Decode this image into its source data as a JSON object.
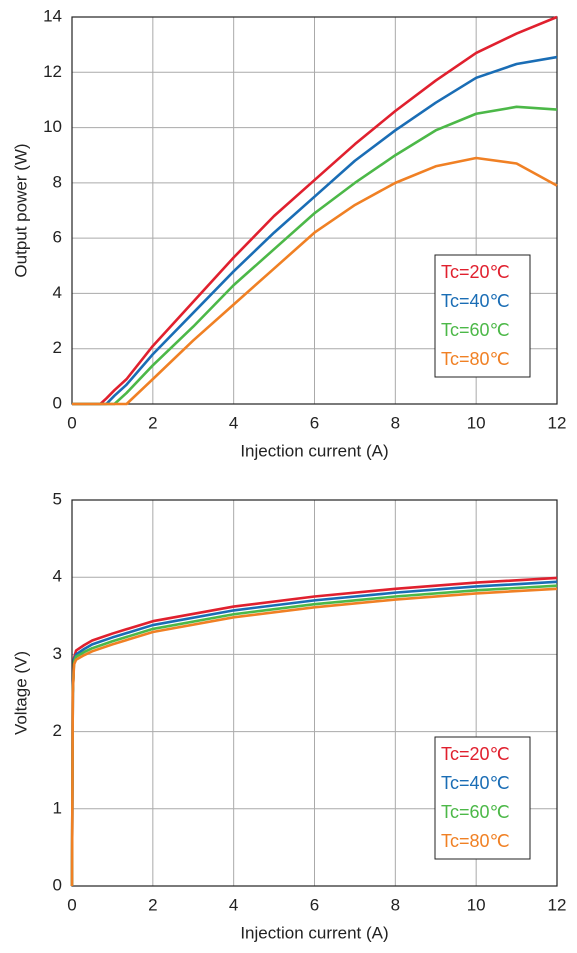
{
  "chart_data": [
    {
      "type": "line",
      "xlabel": "Injection current (A)",
      "ylabel": "Output power (W)",
      "x": [
        0,
        0.7,
        0.85,
        1.05,
        1.35,
        2,
        3,
        4,
        5,
        6,
        7,
        8,
        9,
        10,
        11,
        12
      ],
      "series": [
        {
          "name": "Tc=20℃",
          "color": "#e0202e",
          "values": [
            0,
            0,
            0.2,
            0.5,
            0.9,
            2.1,
            3.7,
            5.3,
            6.8,
            8.1,
            9.4,
            10.6,
            11.7,
            12.7,
            13.4,
            14.0
          ]
        },
        {
          "name": "Tc=40℃",
          "color": "#1a6db5",
          "values": [
            0,
            0,
            0,
            0.3,
            0.7,
            1.8,
            3.3,
            4.8,
            6.2,
            7.5,
            8.8,
            9.9,
            10.9,
            11.8,
            12.3,
            12.55
          ]
        },
        {
          "name": "Tc=60℃",
          "color": "#4cb848",
          "values": [
            0,
            0,
            0,
            0,
            0.4,
            1.4,
            2.8,
            4.3,
            5.6,
            6.9,
            8.0,
            9.0,
            9.9,
            10.5,
            10.75,
            10.65
          ]
        },
        {
          "name": "Tc=80℃",
          "color": "#f08024",
          "values": [
            0,
            0,
            0,
            0,
            0,
            0.9,
            2.3,
            3.6,
            4.9,
            6.2,
            7.2,
            8.0,
            8.6,
            8.9,
            8.7,
            7.9
          ]
        }
      ],
      "xlim": [
        0,
        12
      ],
      "xticks": [
        0,
        2,
        4,
        6,
        8,
        10,
        12
      ],
      "ylim": [
        0,
        14
      ],
      "yticks": [
        0,
        2,
        4,
        6,
        8,
        10,
        12,
        14
      ],
      "grid": true,
      "legend": "lower right"
    },
    {
      "type": "line",
      "xlabel": "Injection current (A)",
      "ylabel": "Voltage (V)",
      "x": [
        0,
        0.02,
        0.05,
        0.1,
        0.3,
        0.5,
        1,
        2,
        4,
        6,
        8,
        10,
        12
      ],
      "series": [
        {
          "name": "Tc=20℃",
          "color": "#e0202e",
          "values": [
            0,
            2.5,
            2.95,
            3.05,
            3.12,
            3.18,
            3.27,
            3.43,
            3.62,
            3.75,
            3.85,
            3.93,
            3.99
          ]
        },
        {
          "name": "Tc=40℃",
          "color": "#1a6db5",
          "values": [
            0,
            2.5,
            2.93,
            3.0,
            3.07,
            3.13,
            3.22,
            3.38,
            3.57,
            3.7,
            3.8,
            3.88,
            3.94
          ]
        },
        {
          "name": "Tc=60℃",
          "color": "#4cb848",
          "values": [
            0,
            2.5,
            2.9,
            2.97,
            3.03,
            3.08,
            3.17,
            3.33,
            3.52,
            3.65,
            3.75,
            3.83,
            3.89
          ]
        },
        {
          "name": "Tc=80℃",
          "color": "#f08024",
          "values": [
            0,
            2.5,
            2.87,
            2.93,
            2.99,
            3.04,
            3.13,
            3.29,
            3.48,
            3.61,
            3.71,
            3.79,
            3.85
          ]
        }
      ],
      "xlim": [
        0,
        12
      ],
      "xticks": [
        0,
        2,
        4,
        6,
        8,
        10,
        12
      ],
      "ylim": [
        0,
        5
      ],
      "yticks": [
        0,
        1,
        2,
        3,
        4,
        5
      ],
      "grid": true,
      "legend": "lower right"
    }
  ]
}
